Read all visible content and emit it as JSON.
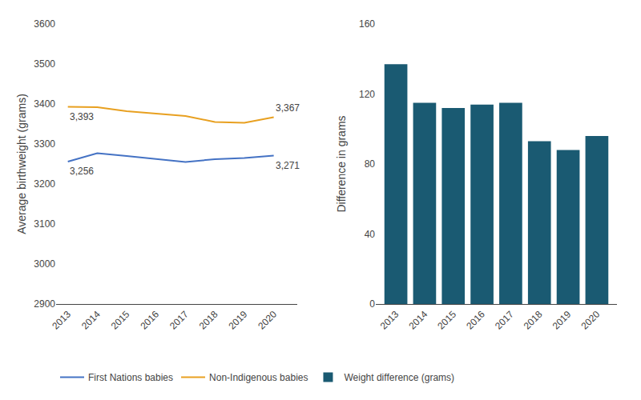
{
  "chart_data": [
    {
      "type": "line",
      "x": [
        2013,
        2014,
        2015,
        2016,
        2017,
        2018,
        2019,
        2020
      ],
      "series": [
        {
          "name": "First Nations babies",
          "color": "#4472c4",
          "values": [
            3256,
            3277,
            3270,
            3262,
            3255,
            3262,
            3265,
            3271
          ]
        },
        {
          "name": "Non-Indigenous babies",
          "color": "#e8a020",
          "values": [
            3393,
            3392,
            3382,
            3376,
            3370,
            3355,
            3353,
            3367
          ]
        }
      ],
      "ylabel": "Average birthweight (grams)",
      "xlim": [
        2012.6,
        2020.8
      ],
      "xticks": [
        2013,
        2014,
        2015,
        2016,
        2017,
        2018,
        2019,
        2020
      ],
      "ylim": [
        2900,
        3600
      ],
      "yticks": [
        2900,
        3000,
        3100,
        3200,
        3300,
        3400,
        3500,
        3600
      ],
      "annotations": [
        {
          "text": "3,393",
          "x": 2013,
          "y": 3393
        },
        {
          "text": "3,367",
          "x": 2020,
          "y": 3367
        },
        {
          "text": "3,256",
          "x": 2013,
          "y": 3256
        },
        {
          "text": "3,271",
          "x": 2020,
          "y": 3271
        }
      ],
      "grid": false,
      "legend": "lower left"
    },
    {
      "type": "bar",
      "x": [
        2013,
        2014,
        2015,
        2016,
        2017,
        2018,
        2019,
        2020
      ],
      "series": [
        {
          "name": "Weight difference (grams)",
          "color": "#1a5a72",
          "values": [
            137,
            115,
            112,
            114,
            115,
            93,
            88,
            96
          ]
        }
      ],
      "ylabel": "Difference in grams",
      "xlim": [
        2012.3,
        2020.7
      ],
      "xticks": [
        2013,
        2014,
        2015,
        2016,
        2017,
        2018,
        2019,
        2020
      ],
      "ylim": [
        0,
        160
      ],
      "yticks": [
        0,
        40,
        80,
        120,
        160
      ],
      "grid": false
    }
  ]
}
